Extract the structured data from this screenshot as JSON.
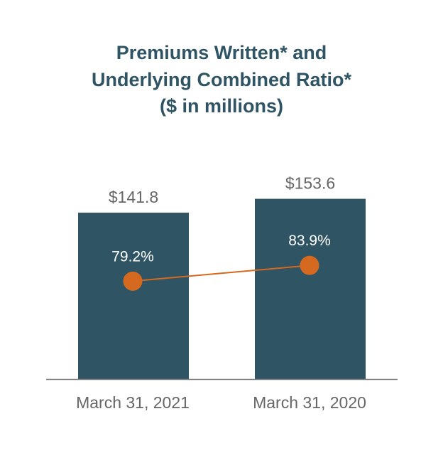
{
  "chart_data": {
    "type": "bar",
    "title_lines": [
      "Premiums Written* and",
      "Underlying Combined Ratio*",
      "($ in millions)"
    ],
    "categories": [
      "March 31, 2021",
      "March 31, 2020"
    ],
    "series": [
      {
        "kind": "bar",
        "values": [
          141.8,
          153.6
        ],
        "labels": [
          "$141.8",
          "$153.6"
        ],
        "color": "#2f5464"
      },
      {
        "kind": "line",
        "values": [
          79.2,
          83.9
        ],
        "labels": [
          "79.2%",
          "83.9%"
        ],
        "color": "#d5691f"
      }
    ],
    "ylim": [
      0,
      200
    ],
    "y2lim": [
      50,
      120
    ],
    "grid": false,
    "legend": "none",
    "xlabel": "",
    "ylabel": ""
  }
}
